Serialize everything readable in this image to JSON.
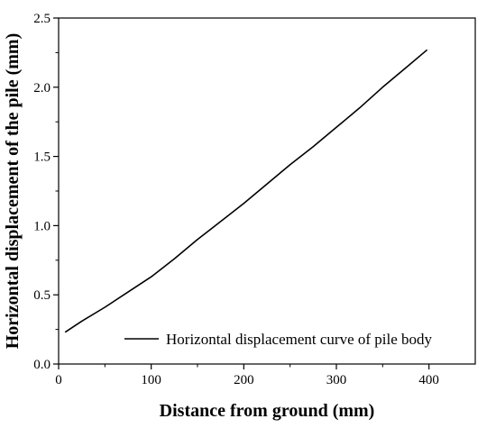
{
  "chart_data": {
    "type": "line",
    "xlabel": "Distance from ground (mm)",
    "ylabel": "Horizontal displacement of the pile (mm)",
    "xlim": [
      0,
      450
    ],
    "ylim": [
      0,
      2.5
    ],
    "x_ticks": [
      0,
      100,
      200,
      300,
      400
    ],
    "y_ticks": [
      0.0,
      0.5,
      1.0,
      1.5,
      2.0,
      2.5
    ],
    "x_tick_labels": [
      "0",
      "100",
      "200",
      "300",
      "400"
    ],
    "y_tick_labels": [
      "0.0",
      "0.5",
      "1.0",
      "1.5",
      "2.0",
      "2.5"
    ],
    "grid": false,
    "legend": {
      "position": "bottom-right",
      "entries": [
        "Horizontal displacement curve of pile body"
      ]
    },
    "series": [
      {
        "name": "Horizontal displacement curve of pile body",
        "color": "#000000",
        "x": [
          7,
          25,
          50,
          75,
          100,
          125,
          150,
          175,
          200,
          225,
          250,
          275,
          300,
          325,
          350,
          375,
          398
        ],
        "y": [
          0.23,
          0.31,
          0.41,
          0.52,
          0.63,
          0.76,
          0.9,
          1.03,
          1.16,
          1.3,
          1.44,
          1.57,
          1.71,
          1.85,
          2.0,
          2.14,
          2.27
        ]
      }
    ]
  }
}
